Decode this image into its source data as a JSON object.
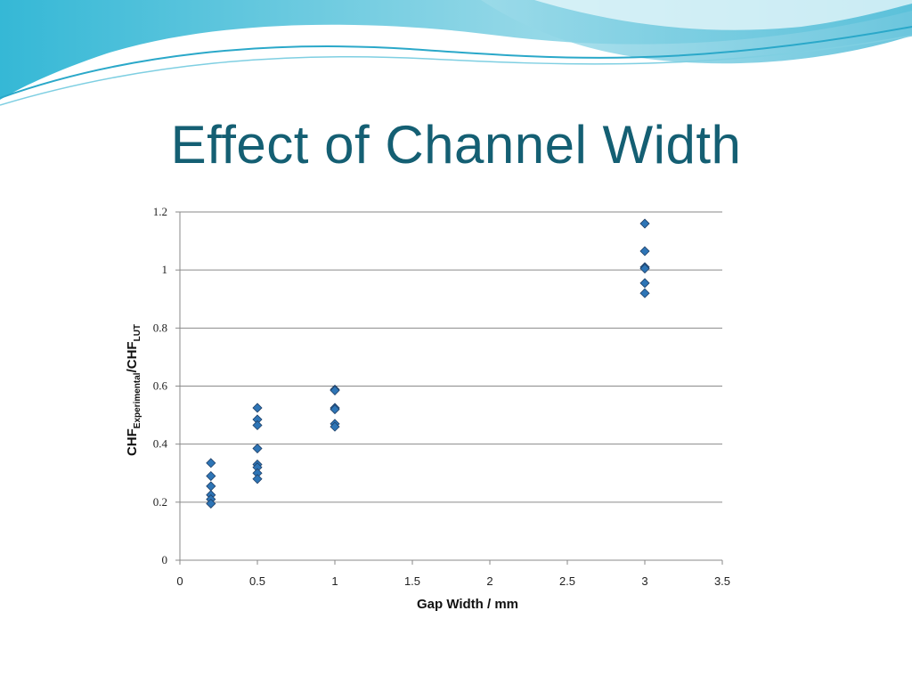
{
  "slide": {
    "title": "Effect of Channel Width",
    "colors": {
      "title": "#145f73",
      "banner_light": "#bfeaf2",
      "banner_mid": "#5cc6dc",
      "banner_dark": "#2aa8c9"
    }
  },
  "chart_data": {
    "type": "scatter",
    "title": "",
    "xlabel": "Gap Width / mm",
    "ylabel": {
      "main": "CHF",
      "sub1": "Experimental",
      "sep": "/CHF",
      "sub2": "LUT"
    },
    "xlim": [
      0,
      3.5
    ],
    "ylim": [
      0,
      1.2
    ],
    "x_ticks": [
      "0",
      "0.5",
      "1",
      "1.5",
      "2",
      "2.5",
      "3",
      "3.5"
    ],
    "y_ticks": [
      "0",
      "0.2",
      "0.4",
      "0.6",
      "0.8",
      "1",
      "1.2"
    ],
    "grid": "horizontal",
    "marker_color": "#2e75b6",
    "marker_edge": "#1f3f66",
    "series": [
      {
        "points": [
          [
            0.2,
            0.335
          ],
          [
            0.2,
            0.29
          ],
          [
            0.2,
            0.255
          ],
          [
            0.2,
            0.225
          ],
          [
            0.2,
            0.21
          ],
          [
            0.2,
            0.195
          ],
          [
            0.5,
            0.525
          ],
          [
            0.5,
            0.485
          ],
          [
            0.5,
            0.465
          ],
          [
            0.5,
            0.385
          ],
          [
            0.5,
            0.33
          ],
          [
            0.5,
            0.32
          ],
          [
            0.5,
            0.3
          ],
          [
            0.5,
            0.28
          ],
          [
            1,
            0.588
          ],
          [
            1,
            0.585
          ],
          [
            1,
            0.525
          ],
          [
            1,
            0.52
          ],
          [
            1,
            0.47
          ],
          [
            1,
            0.46
          ],
          [
            3,
            1.16
          ],
          [
            3,
            1.065
          ],
          [
            3,
            1.01
          ],
          [
            3,
            1.005
          ],
          [
            3,
            0.955
          ],
          [
            3,
            0.92
          ]
        ]
      }
    ]
  }
}
